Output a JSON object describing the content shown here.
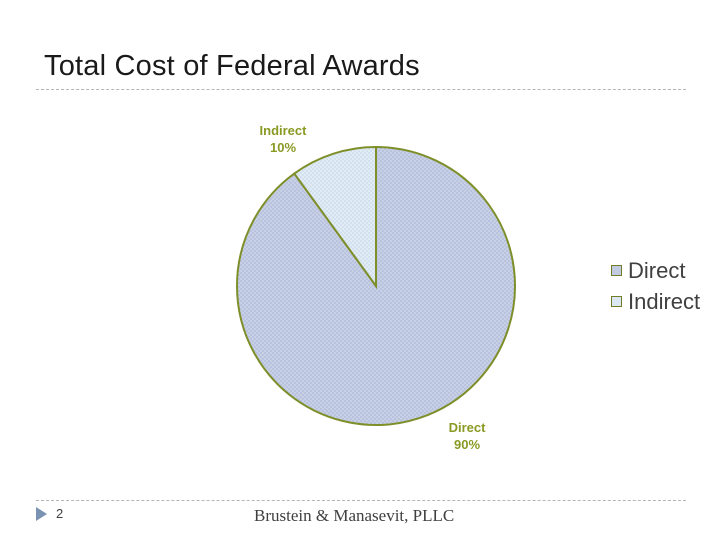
{
  "slide": {
    "title": "Total Cost of Federal Awards",
    "number": "2",
    "footer": "Brustein & Manasevit, PLLC"
  },
  "colors": {
    "direct_fill": "#c8d0e6",
    "indirect_fill": "#dde9f4",
    "slice_border": "#7e8f2a",
    "label_color": "#8a9a24"
  },
  "chart_data": {
    "type": "pie",
    "title": "",
    "categories": [
      "Direct",
      "Indirect"
    ],
    "values": [
      90,
      10
    ],
    "unit": "%",
    "data_labels": [
      {
        "category": "Direct",
        "value": "90%"
      },
      {
        "category": "Indirect",
        "value": "10%"
      }
    ],
    "legend": {
      "placement": "right",
      "entries": [
        "Direct",
        "Indirect"
      ]
    }
  }
}
